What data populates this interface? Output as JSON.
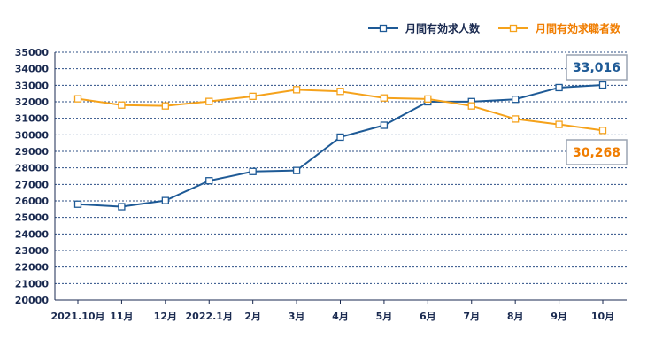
{
  "chart_data": {
    "type": "line",
    "categories": [
      "2021.10月",
      "11月",
      "12月",
      "2022.1月",
      "2月",
      "3月",
      "4月",
      "5月",
      "6月",
      "7月",
      "8月",
      "9月",
      "10月"
    ],
    "series": [
      {
        "name": "月間有効求人数",
        "color": "#1e5a96",
        "values": [
          25800,
          25650,
          26020,
          27220,
          27780,
          27840,
          29860,
          30580,
          32000,
          32010,
          32150,
          32860,
          33016
        ]
      },
      {
        "name": "月間有効求職者数",
        "color": "#f5a21b",
        "values": [
          32180,
          31800,
          31750,
          32020,
          32330,
          32730,
          32630,
          32230,
          32170,
          31750,
          30960,
          30630,
          30268
        ]
      }
    ],
    "ylim": [
      20000,
      35000
    ],
    "yticks": [
      20000,
      21000,
      22000,
      23000,
      24000,
      25000,
      26000,
      27000,
      28000,
      29000,
      30000,
      31000,
      32000,
      33000,
      34000,
      35000
    ],
    "grid": "horizontal-dotted",
    "legend": "top-right",
    "annotations": [
      {
        "text": "33,016",
        "series": 0,
        "color": "#1e5a96"
      },
      {
        "text": "30,268",
        "series": 1,
        "color": "#f07d00"
      }
    ]
  }
}
